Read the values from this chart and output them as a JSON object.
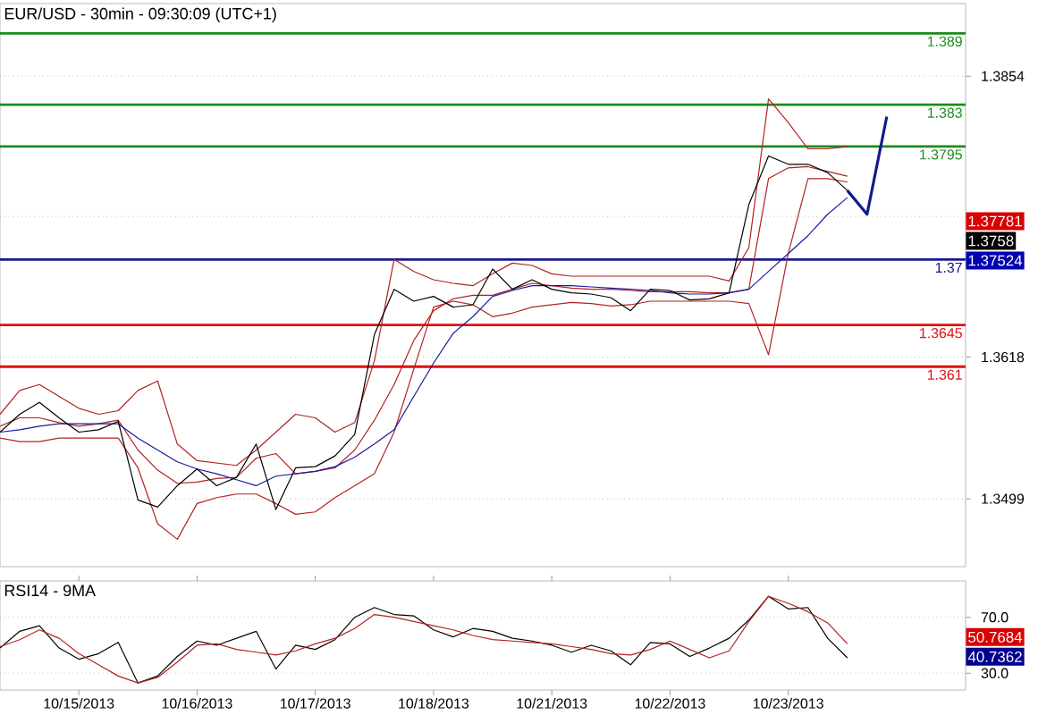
{
  "chart_data": [
    {
      "type": "line",
      "title": "EUR/USD - 30min - 09:30:09 (UTC+1)",
      "categories": [
        null,
        null,
        null,
        null,
        null,
        null,
        null,
        null,
        null,
        null,
        null,
        null,
        null,
        null,
        null,
        null,
        null,
        null,
        null,
        null,
        null,
        null,
        null,
        null,
        null,
        null,
        null,
        null,
        null,
        null,
        null,
        null,
        null,
        null,
        null,
        null,
        null,
        null,
        null,
        null,
        null,
        null,
        null,
        null,
        null,
        null,
        null,
        null,
        null,
        null
      ],
      "ylim": [
        1.3442,
        1.3915
      ],
      "yticks": [
        1.3854,
        {
          "value": 1.3736,
          "label": null
        },
        1.3618,
        1.3499
      ],
      "tick_labels": "y",
      "grid": "y",
      "series": [
        {
          "color": "#b22222",
          "values": [
            1.357,
            1.359,
            1.3595,
            1.3585,
            1.3575,
            1.357,
            1.3573,
            1.359,
            1.3598,
            1.3545,
            1.3531,
            1.3529,
            1.3527,
            1.354,
            1.3555,
            1.357,
            1.3567,
            1.3555,
            1.3563,
            1.3615,
            1.37,
            1.369,
            1.3683,
            1.368,
            1.3678,
            1.3688,
            1.3697,
            1.3695,
            1.3688,
            1.3686,
            1.3686,
            1.3686,
            1.3686,
            1.3686,
            1.3686,
            1.3686,
            1.3686,
            1.3682,
            1.371,
            1.3835,
            1.3815,
            1.3793,
            1.3793,
            1.3795,
            null,
            null,
            null,
            null,
            null,
            null
          ]
        },
        {
          "color": "#b22222",
          "values": [
            1.355,
            1.3547,
            1.3547,
            1.355,
            1.355,
            1.355,
            1.355,
            1.3525,
            1.3478,
            1.3465,
            1.3495,
            1.35,
            1.3503,
            1.3503,
            1.3495,
            1.3486,
            1.3488,
            1.35,
            1.351,
            1.352,
            1.3555,
            1.3608,
            1.366,
            1.3665,
            1.3662,
            1.3652,
            1.3655,
            1.366,
            1.3662,
            1.3664,
            1.3663,
            1.3661,
            1.3662,
            1.3665,
            1.3665,
            1.3665,
            1.3665,
            1.3665,
            1.3663,
            1.362,
            1.3705,
            1.3768,
            1.3768,
            1.3765,
            null,
            null,
            null,
            null,
            null,
            null
          ]
        },
        {
          "color": "#b22222",
          "values": [
            1.356,
            1.3567,
            1.3567,
            1.3563,
            1.356,
            1.3562,
            1.3565,
            1.354,
            1.3523,
            1.3512,
            1.3513,
            1.3516,
            1.3517,
            1.3533,
            1.3537,
            1.352,
            1.3522,
            1.3525,
            1.354,
            1.3565,
            1.3595,
            1.3632,
            1.3657,
            1.3667,
            1.367,
            1.367,
            1.3675,
            1.368,
            1.3678,
            1.3676,
            1.3675,
            1.3675,
            1.3674,
            1.3673,
            1.3673,
            1.3673,
            1.3672,
            1.3672,
            1.3675,
            1.3768,
            1.3777,
            1.3778,
            1.3774,
            1.377,
            null,
            null,
            null,
            null,
            null,
            null
          ]
        },
        {
          "color": "#1a1aa0",
          "values": [
            1.3555,
            1.3557,
            1.356,
            1.3562,
            1.3562,
            1.3562,
            1.3562,
            1.355,
            1.354,
            1.353,
            1.3524,
            1.352,
            1.3515,
            1.351,
            1.3518,
            1.352,
            1.3522,
            1.3526,
            1.3534,
            1.3545,
            1.3557,
            1.3585,
            1.3613,
            1.3638,
            1.3652,
            1.3669,
            1.3674,
            1.3678,
            1.3678,
            1.3678,
            1.3677,
            1.3676,
            1.3675,
            1.3674,
            1.3672,
            1.3671,
            1.3671,
            1.3672,
            1.3675,
            1.369,
            1.3705,
            1.372,
            1.3738,
            1.3752,
            null,
            null,
            null,
            null,
            null,
            null
          ]
        },
        {
          "color": "#000000",
          "values": [
            1.3555,
            1.357,
            1.358,
            1.3567,
            1.3555,
            1.3557,
            1.3564,
            1.3498,
            1.3492,
            1.351,
            1.3524,
            1.351,
            1.3517,
            1.3545,
            1.349,
            1.3525,
            1.3526,
            1.3535,
            1.3553,
            1.3637,
            1.3675,
            1.3665,
            1.3669,
            1.366,
            1.3662,
            1.3692,
            1.3675,
            1.3683,
            1.3675,
            1.3672,
            1.3671,
            1.3668,
            1.3657,
            1.3675,
            1.3674,
            1.3666,
            1.3667,
            1.3672,
            1.3746,
            1.3787,
            1.378,
            1.378,
            1.3773,
            1.3758,
            null,
            null,
            null,
            null,
            null,
            null
          ]
        },
        {
          "color": "#0d1d8c",
          "values": [
            null,
            null,
            null,
            null,
            null,
            null,
            null,
            null,
            null,
            null,
            null,
            null,
            null,
            null,
            null,
            null,
            null,
            null,
            null,
            null,
            null,
            null,
            null,
            null,
            null,
            null,
            null,
            null,
            null,
            null,
            null,
            null,
            null,
            null,
            null,
            null,
            null,
            null,
            null,
            null,
            null,
            null,
            null,
            1.3758,
            1.3738,
            1.382,
            null,
            null,
            null,
            null
          ]
        }
      ],
      "ref_lines": [
        {
          "axis": "y",
          "value": 1.389,
          "label": "1.389",
          "color": "#1e8a1e"
        },
        {
          "axis": "y",
          "value": 1.383,
          "label": "1.383",
          "color": "#1e8a1e"
        },
        {
          "axis": "y",
          "value": 1.3795,
          "label": "1.3795",
          "color": "#1e8a1e"
        },
        {
          "axis": "y",
          "value": 1.37,
          "label": "1.37",
          "color": "#1a1a8c"
        },
        {
          "axis": "y",
          "value": 1.3645,
          "label": "1.3645",
          "color": "#e01010"
        },
        {
          "axis": "y",
          "value": 1.361,
          "label": "1.361",
          "color": "#e01010"
        }
      ],
      "annotations": [
        "1.37781",
        "1.3758",
        "1.37524"
      ]
    },
    {
      "type": "line",
      "title": "RSI14 - 9MA",
      "categories": [
        null,
        null,
        null,
        null,
        "10/15/2013",
        null,
        null,
        null,
        null,
        null,
        "10/16/2013",
        null,
        null,
        null,
        null,
        null,
        "10/17/2013",
        null,
        null,
        null,
        null,
        null,
        "10/18/2013",
        null,
        null,
        null,
        null,
        null,
        "10/21/2013",
        null,
        null,
        null,
        null,
        null,
        "10/22/2013",
        null,
        null,
        null,
        null,
        null,
        "10/23/2013",
        null,
        null,
        null,
        null,
        null,
        null,
        null,
        null,
        null
      ],
      "ylim": [
        18,
        96
      ],
      "yticks": [
        {
          "value": 70,
          "label": "70.0"
        },
        {
          "value": 30,
          "label": "30.0"
        }
      ],
      "grid": "y",
      "series": [
        {
          "color": "#000000",
          "values": [
            48,
            60,
            64,
            48,
            40,
            44,
            52,
            23,
            28,
            42,
            53,
            50,
            55,
            60,
            33,
            50,
            47,
            54,
            70,
            77,
            72,
            71,
            61,
            56,
            62,
            60,
            55,
            53,
            50,
            45,
            50,
            46,
            36,
            52,
            51,
            42,
            48,
            55,
            68,
            85,
            76,
            77,
            55,
            41,
            null,
            null,
            null,
            null,
            null,
            null
          ]
        },
        {
          "color": "#b22222",
          "values": [
            49,
            54,
            61,
            55,
            44,
            36,
            28,
            23,
            27,
            38,
            50,
            51,
            47,
            45,
            43,
            46,
            51,
            55,
            62,
            72,
            70,
            67,
            64,
            61,
            57,
            54,
            53,
            52,
            51,
            49,
            47,
            44,
            43,
            47,
            53,
            47,
            41,
            46,
            67,
            85,
            80,
            74,
            66,
            51,
            null,
            null,
            null,
            null,
            null,
            null
          ]
        }
      ],
      "annotations": [
        "50.7684",
        "40.7362"
      ]
    }
  ]
}
